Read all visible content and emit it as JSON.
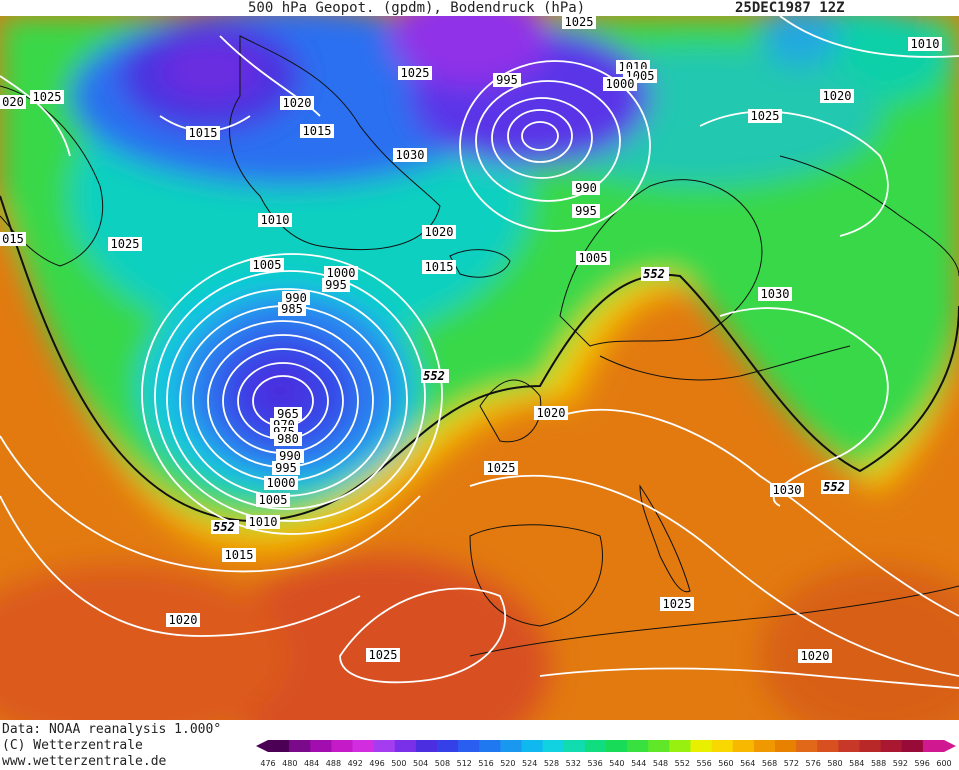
{
  "header": {
    "title": "500 hPa Geopot. (gpdm), Bodendruck (hPa)",
    "date": "25DEC1987 12Z"
  },
  "footer": {
    "data_line": "Data: NOAA reanalysis 1.000°",
    "copyright": "(C) Wetterzentrale",
    "url": "www.wetterzentrale.de"
  },
  "map": {
    "isobar_labels": [
      {
        "id": "p1",
        "text": "1025"
      },
      {
        "id": "p2",
        "text": "020"
      },
      {
        "id": "p3",
        "text": "1015"
      },
      {
        "id": "p4",
        "text": "1020"
      },
      {
        "id": "p5",
        "text": "1015"
      },
      {
        "id": "p6",
        "text": "1025"
      },
      {
        "id": "p7",
        "text": "1030"
      },
      {
        "id": "p8",
        "text": "995"
      },
      {
        "id": "p9",
        "text": "1025"
      },
      {
        "id": "p10",
        "text": "1010"
      },
      {
        "id": "p11",
        "text": "1005"
      },
      {
        "id": "p12",
        "text": "1000"
      },
      {
        "id": "p13",
        "text": "1010"
      },
      {
        "id": "p14",
        "text": "1020"
      },
      {
        "id": "p15",
        "text": "1025"
      },
      {
        "id": "p16",
        "text": "990"
      },
      {
        "id": "p17",
        "text": "995"
      },
      {
        "id": "p18",
        "text": "015"
      },
      {
        "id": "p19",
        "text": "1025"
      },
      {
        "id": "p20",
        "text": "1010"
      },
      {
        "id": "p21",
        "text": "1020"
      },
      {
        "id": "p22",
        "text": "1015"
      },
      {
        "id": "p23",
        "text": "1005"
      },
      {
        "id": "p24",
        "text": "1000"
      },
      {
        "id": "p25",
        "text": "995"
      },
      {
        "id": "p26",
        "text": "990"
      },
      {
        "id": "p27",
        "text": "985"
      },
      {
        "id": "p28",
        "text": "1005"
      },
      {
        "id": "p29",
        "text": "1030"
      },
      {
        "id": "p30",
        "text": "965"
      },
      {
        "id": "p31",
        "text": "970"
      },
      {
        "id": "p32",
        "text": "975"
      },
      {
        "id": "p33",
        "text": "980"
      },
      {
        "id": "p34",
        "text": "990"
      },
      {
        "id": "p35",
        "text": "995"
      },
      {
        "id": "p36",
        "text": "1000"
      },
      {
        "id": "p37",
        "text": "1005"
      },
      {
        "id": "p38",
        "text": "1010"
      },
      {
        "id": "p39",
        "text": "1015"
      },
      {
        "id": "p40",
        "text": "1020"
      },
      {
        "id": "p41",
        "text": "1025"
      },
      {
        "id": "p42",
        "text": "1020"
      },
      {
        "id": "p43",
        "text": "1030"
      },
      {
        "id": "p44",
        "text": "1025"
      },
      {
        "id": "p45",
        "text": "1020"
      },
      {
        "id": "p46",
        "text": "1025"
      }
    ],
    "contour_labels": [
      {
        "id": "c1",
        "text": "552"
      },
      {
        "id": "c2",
        "text": "552"
      },
      {
        "id": "c3",
        "text": "552"
      },
      {
        "id": "c4",
        "text": "552"
      }
    ]
  },
  "colorbar": {
    "ticks": [
      "476",
      "480",
      "484",
      "488",
      "492",
      "496",
      "500",
      "504",
      "508",
      "512",
      "516",
      "520",
      "524",
      "528",
      "532",
      "536",
      "540",
      "544",
      "548",
      "552",
      "556",
      "560",
      "564",
      "568",
      "572",
      "576",
      "580",
      "584",
      "588",
      "592",
      "596",
      "600"
    ],
    "colors": [
      "#4b0055",
      "#7a0a8a",
      "#a20db0",
      "#c41ac8",
      "#d22ee0",
      "#a43cf0",
      "#7a30e8",
      "#4a2ee0",
      "#3540e8",
      "#2a5ef0",
      "#2078f0",
      "#1a98f0",
      "#10b8f0",
      "#10d2e0",
      "#10dcb0",
      "#10dc80",
      "#18dc58",
      "#38e040",
      "#60e828",
      "#98f010",
      "#e8f000",
      "#f8d800",
      "#f8b800",
      "#f09800",
      "#e88000",
      "#e06818",
      "#d85020",
      "#c83828",
      "#b82828",
      "#a81830",
      "#980a38",
      "#d01890"
    ]
  },
  "colors": {
    "contour_552": "#111111",
    "isobar": "#ffffff",
    "coastline": "#111111"
  }
}
